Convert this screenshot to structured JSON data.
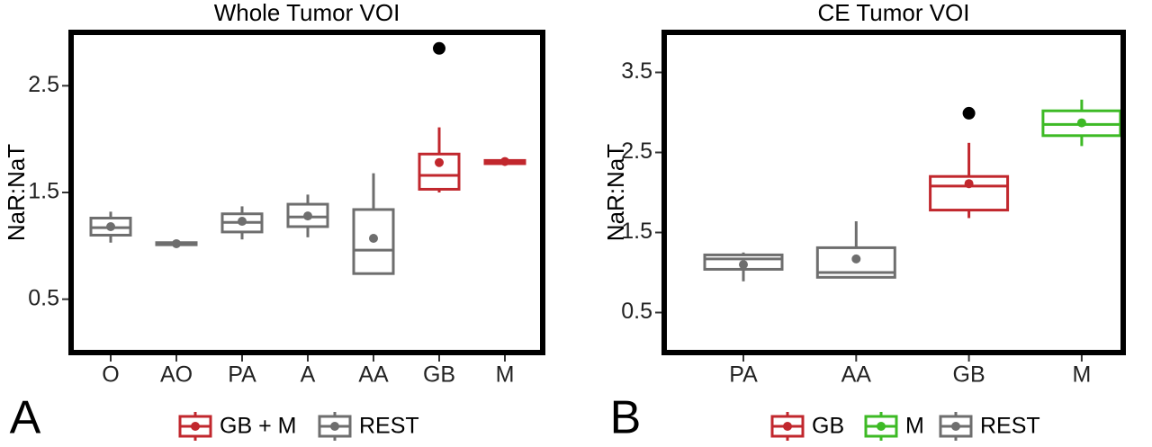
{
  "chart_data": [
    {
      "type": "box",
      "title": "Whole Tumor VOI",
      "ylabel": "NaR:NaT",
      "panel_label": "A",
      "categories": [
        "O",
        "AO",
        "PA",
        "A",
        "AA",
        "GB",
        "M"
      ],
      "ylim": [
        0,
        3.0
      ],
      "yticks": [
        0.5,
        1.5,
        2.5
      ],
      "outlier_color": "#000000",
      "legend": "bottom",
      "series": [
        {
          "name": "GB + M",
          "color": "#c1272d",
          "values": [
            null,
            null,
            null,
            null,
            null,
            {
              "min": 1.5,
              "q1": 1.53,
              "median": 1.66,
              "q3": 1.86,
              "max": 2.11,
              "mean": 1.78,
              "outliers": [
                2.85
              ]
            },
            {
              "min": 1.77,
              "q1": 1.77,
              "median": 1.79,
              "q3": 1.8,
              "max": 1.8,
              "mean": 1.79,
              "outliers": []
            }
          ]
        },
        {
          "name": "REST",
          "color": "#6e6e6e",
          "values": [
            {
              "min": 1.03,
              "q1": 1.1,
              "median": 1.17,
              "q3": 1.26,
              "max": 1.32,
              "mean": 1.18,
              "outliers": []
            },
            {
              "min": 1.01,
              "q1": 1.01,
              "median": 1.02,
              "q3": 1.03,
              "max": 1.03,
              "mean": 1.02,
              "outliers": []
            },
            {
              "min": 1.06,
              "q1": 1.13,
              "median": 1.22,
              "q3": 1.3,
              "max": 1.37,
              "mean": 1.23,
              "outliers": []
            },
            {
              "min": 1.08,
              "q1": 1.18,
              "median": 1.27,
              "q3": 1.39,
              "max": 1.48,
              "mean": 1.28,
              "outliers": []
            },
            {
              "min": 0.74,
              "q1": 0.74,
              "median": 0.96,
              "q3": 1.34,
              "max": 1.68,
              "mean": 1.07,
              "outliers": []
            },
            null,
            null
          ]
        }
      ]
    },
    {
      "type": "box",
      "title": "CE Tumor VOI",
      "ylabel": "NaR:NaT",
      "panel_label": "B",
      "categories": [
        "PA",
        "AA",
        "GB",
        "M"
      ],
      "ylim": [
        0,
        4.0
      ],
      "yticks": [
        0.5,
        1.5,
        2.5,
        3.5
      ],
      "outlier_color": "#000000",
      "legend": "bottom",
      "series": [
        {
          "name": "GB",
          "color": "#c1272d",
          "values": [
            null,
            null,
            {
              "min": 1.68,
              "q1": 1.78,
              "median": 2.08,
              "q3": 2.2,
              "max": 2.62,
              "mean": 2.11,
              "outliers": [
                2.99
              ]
            },
            null
          ]
        },
        {
          "name": "M",
          "color": "#3dba25",
          "values": [
            null,
            null,
            null,
            {
              "min": 2.58,
              "q1": 2.71,
              "median": 2.85,
              "q3": 3.02,
              "max": 3.16,
              "mean": 2.87,
              "outliers": []
            }
          ]
        },
        {
          "name": "REST",
          "color": "#6e6e6e",
          "values": [
            {
              "min": 0.89,
              "q1": 1.04,
              "median": 1.17,
              "q3": 1.22,
              "max": 1.25,
              "mean": 1.1,
              "outliers": []
            },
            {
              "min": 0.93,
              "q1": 0.94,
              "median": 1.0,
              "q3": 1.31,
              "max": 1.64,
              "mean": 1.17,
              "outliers": []
            },
            null,
            null
          ]
        }
      ]
    }
  ]
}
